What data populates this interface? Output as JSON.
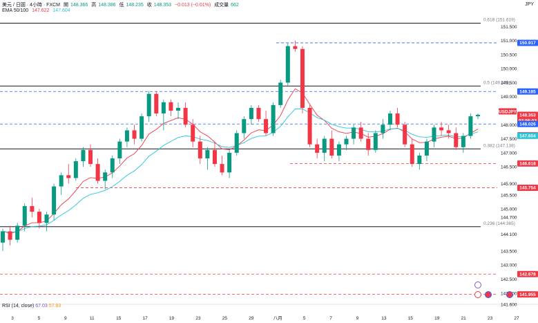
{
  "header": {
    "line1": {
      "title": "美元 / 日圓 · 4小時 · FXCM",
      "open_label": "開",
      "open": "148.366",
      "high_label": "高",
      "high": "148.386",
      "low_label": "低",
      "low": "148.235",
      "close_label": "收",
      "close": "148.353",
      "change": "−0.013 (−0.01%)",
      "volume_label": "成交量",
      "volume": "662"
    },
    "line2": {
      "label": "EMA 50/100",
      "ema50": "147.622",
      "ema100": "147.604"
    }
  },
  "currency": "JPY",
  "rsi": {
    "label": "RSI (14, close)",
    "value1": "67.03",
    "value2": "57.93"
  },
  "colors": {
    "up": "#089981",
    "down": "#f23645",
    "ema50": "#f23645",
    "ema100": "#26c6da",
    "fib_line": "#131722",
    "blue_dashed": "#2962ff",
    "red_dashed": "#f23645",
    "tag_blue": "#2962ff",
    "tag_red": "#f23645",
    "tag_black": "#131722"
  },
  "chart_data": {
    "type": "candlestick",
    "symbol": "USDJPY",
    "timeframe": "4h",
    "ylim": [
      141.6,
      152.0
    ],
    "price_axis_ticks": [
      "151.500",
      "151.000",
      "150.500",
      "150.000",
      "149.500",
      "149.000",
      "148.500",
      "148.000",
      "147.500",
      "147.000",
      "146.500",
      "145.900",
      "145.500",
      "145.000",
      "144.700",
      "144.100",
      "143.500",
      "143.000",
      "142.500",
      "142.000",
      "141.600"
    ],
    "x_ticks": [
      "3",
      "5",
      "9",
      "11",
      "15",
      "17",
      "19",
      "23",
      "25",
      "29",
      "八月",
      "5",
      "7",
      "9",
      "13",
      "15",
      "19",
      "21",
      "23",
      "27"
    ],
    "fib_levels": [
      {
        "ratio": "0.618",
        "price": 151.619,
        "label": "0.618 (151.619)"
      },
      {
        "ratio": "0.5",
        "price": 149.379,
        "label": "0.5 (149.379)"
      },
      {
        "ratio": "0.382",
        "price": 147.138,
        "label": "0.382 (147.138)"
      },
      {
        "ratio": "0.236",
        "price": 144.365,
        "label": "0.236 (144.365)"
      }
    ],
    "blue_dashed_levels": [
      150.917,
      149.185,
      148.026
    ],
    "red_dashed_levels": [
      146.618,
      145.754,
      142.678,
      141.955
    ],
    "price_tags": [
      {
        "text": "150.917",
        "price": 150.917,
        "style": "blue"
      },
      {
        "text": "149.185",
        "price": 149.185,
        "style": "blue"
      },
      {
        "text": "USDJPY",
        "price": 148.353,
        "style": "red",
        "offset": -5
      },
      {
        "text": "148.353",
        "price": 148.353,
        "style": "red"
      },
      {
        "text": "02:56:03",
        "price": 148.353,
        "style": "red",
        "offset": 8
      },
      {
        "text": "148.026",
        "price": 148.026,
        "style": "blue"
      },
      {
        "text": "147.622",
        "price": 147.622,
        "style": "red"
      },
      {
        "text": "147.604",
        "price": 147.604,
        "style": "teal"
      },
      {
        "text": "146.618",
        "price": 146.618,
        "style": "red"
      },
      {
        "text": "145.754",
        "price": 145.754,
        "style": "red"
      },
      {
        "text": "142.678",
        "price": 142.678,
        "style": "red"
      },
      {
        "text": "141.955",
        "price": 141.955,
        "style": "red"
      }
    ],
    "candles": [
      [
        143.8,
        144.3,
        143.5,
        144.2
      ],
      [
        144.2,
        144.4,
        143.7,
        143.9
      ],
      [
        143.9,
        144.5,
        143.8,
        144.4
      ],
      [
        144.4,
        145.2,
        144.2,
        145.1
      ],
      [
        145.1,
        145.4,
        144.7,
        144.9
      ],
      [
        144.9,
        145.0,
        144.3,
        144.5
      ],
      [
        144.5,
        144.9,
        144.2,
        144.8
      ],
      [
        144.8,
        145.9,
        144.6,
        145.8
      ],
      [
        145.8,
        146.3,
        145.5,
        146.2
      ],
      [
        146.2,
        146.6,
        145.9,
        146.1
      ],
      [
        146.1,
        146.8,
        146.0,
        146.7
      ],
      [
        146.7,
        147.2,
        146.5,
        147.1
      ],
      [
        147.1,
        147.3,
        146.5,
        146.6
      ],
      [
        146.6,
        146.8,
        145.9,
        146.0
      ],
      [
        146.0,
        146.4,
        145.7,
        146.3
      ],
      [
        146.3,
        146.9,
        146.1,
        146.8
      ],
      [
        146.8,
        147.5,
        146.6,
        147.4
      ],
      [
        147.4,
        147.9,
        147.2,
        147.8
      ],
      [
        147.8,
        148.0,
        147.3,
        147.5
      ],
      [
        147.5,
        148.4,
        147.4,
        148.3
      ],
      [
        148.3,
        149.2,
        148.1,
        149.1
      ],
      [
        149.1,
        149.2,
        148.3,
        148.4
      ],
      [
        148.4,
        148.9,
        147.8,
        148.8
      ],
      [
        148.8,
        148.9,
        148.3,
        148.5
      ],
      [
        148.5,
        148.8,
        148.2,
        148.6
      ],
      [
        148.6,
        148.8,
        147.9,
        148.0
      ],
      [
        148.0,
        148.2,
        147.2,
        147.4
      ],
      [
        147.4,
        147.6,
        146.6,
        146.8
      ],
      [
        146.8,
        147.2,
        146.4,
        147.1
      ],
      [
        147.1,
        147.4,
        146.5,
        146.6
      ],
      [
        146.6,
        146.9,
        146.2,
        146.3
      ],
      [
        146.3,
        147.1,
        146.1,
        147.0
      ],
      [
        147.0,
        147.8,
        146.9,
        147.7
      ],
      [
        147.7,
        148.3,
        147.5,
        148.2
      ],
      [
        148.2,
        148.7,
        148.0,
        148.6
      ],
      [
        148.6,
        148.7,
        148.1,
        148.2
      ],
      [
        148.2,
        148.5,
        147.6,
        147.7
      ],
      [
        147.7,
        148.8,
        147.6,
        148.7
      ],
      [
        148.7,
        149.6,
        148.6,
        149.5
      ],
      [
        149.5,
        150.9,
        149.4,
        150.8
      ],
      [
        150.8,
        151.0,
        150.6,
        150.7
      ],
      [
        150.7,
        150.8,
        148.4,
        148.6
      ],
      [
        148.6,
        148.7,
        147.2,
        147.3
      ],
      [
        147.3,
        147.5,
        146.8,
        147.0
      ],
      [
        147.0,
        147.6,
        146.7,
        147.5
      ],
      [
        147.5,
        147.8,
        146.8,
        146.9
      ],
      [
        146.9,
        147.4,
        146.7,
        147.3
      ],
      [
        147.3,
        147.6,
        147.1,
        147.5
      ],
      [
        147.5,
        148.0,
        147.3,
        147.9
      ],
      [
        147.9,
        148.1,
        147.4,
        147.5
      ],
      [
        147.5,
        147.7,
        146.9,
        147.1
      ],
      [
        147.1,
        147.8,
        147.0,
        147.7
      ],
      [
        147.7,
        148.2,
        147.5,
        148.0
      ],
      [
        148.0,
        148.5,
        147.8,
        148.4
      ],
      [
        148.4,
        148.6,
        147.9,
        148.0
      ],
      [
        148.0,
        148.1,
        147.2,
        147.3
      ],
      [
        147.3,
        147.5,
        146.5,
        146.6
      ],
      [
        146.6,
        147.0,
        146.4,
        146.9
      ],
      [
        146.9,
        147.5,
        146.7,
        147.4
      ],
      [
        147.4,
        148.0,
        147.2,
        147.9
      ],
      [
        147.9,
        148.1,
        147.6,
        147.8
      ],
      [
        147.8,
        148.0,
        147.5,
        147.7
      ],
      [
        147.7,
        147.9,
        147.1,
        147.2
      ],
      [
        147.2,
        147.7,
        147.0,
        147.6
      ],
      [
        147.6,
        148.4,
        147.5,
        148.3
      ],
      [
        148.3,
        148.4,
        148.2,
        148.353
      ]
    ]
  }
}
